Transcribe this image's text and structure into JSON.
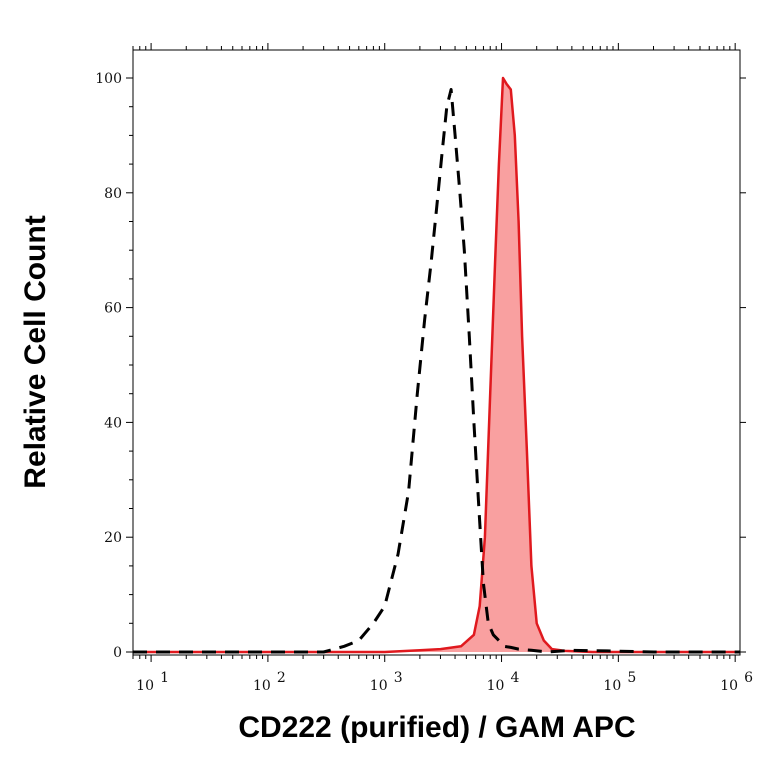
{
  "chart_data": {
    "type": "area",
    "xlabel": "CD222 (purified) / GAM APC",
    "ylabel": "Relative Cell Count",
    "x_scale": "log",
    "xlim": [
      7,
      1100000
    ],
    "ylim": [
      0,
      100
    ],
    "x_ticks": [
      {
        "base": "10",
        "exp": "1",
        "value": 10
      },
      {
        "base": "10",
        "exp": "2",
        "value": 100
      },
      {
        "base": "10",
        "exp": "3",
        "value": 1000
      },
      {
        "base": "10",
        "exp": "4",
        "value": 10000
      },
      {
        "base": "10",
        "exp": "5",
        "value": 100000
      },
      {
        "base": "10",
        "exp": "6",
        "value": 1000000
      }
    ],
    "y_ticks": [
      0,
      20,
      40,
      60,
      80,
      100
    ],
    "grid": false,
    "legend": "none",
    "series": [
      {
        "style": "dashed-black-line",
        "color": "#000000",
        "x": [
          7,
          300,
          450,
          600,
          800,
          1000,
          1300,
          1600,
          1900,
          2200,
          2500,
          2800,
          3100,
          3400,
          3700,
          4000,
          4400,
          4800,
          5300,
          5800,
          6400,
          7000,
          7700,
          8500,
          9500,
          10500,
          12000,
          14000,
          18000,
          25000,
          40000,
          80000,
          200000,
          1100000
        ],
        "y": [
          0,
          0,
          1,
          2,
          5,
          8,
          17,
          28,
          45,
          58,
          68,
          78,
          87,
          95,
          98,
          90,
          80,
          70,
          55,
          40,
          25,
          12,
          5,
          3,
          2,
          1,
          0.8,
          0.5,
          0.3,
          0,
          0.3,
          0.2,
          0,
          0
        ]
      },
      {
        "style": "filled-red-area",
        "color": "#e0191e",
        "fill": "#f9a0a0",
        "x": [
          7,
          1000,
          2000,
          3000,
          4500,
          5800,
          6500,
          7200,
          8000,
          8800,
          9500,
          10300,
          11000,
          12000,
          13000,
          14000,
          15000,
          16500,
          18000,
          20000,
          23000,
          27000,
          35000,
          60000,
          200000,
          1100000
        ],
        "y": [
          0,
          0,
          0.3,
          0.5,
          1,
          3,
          8,
          20,
          45,
          68,
          85,
          100,
          99,
          98,
          90,
          75,
          55,
          35,
          15,
          5,
          2,
          0.5,
          0.2,
          0,
          0,
          0
        ]
      }
    ]
  }
}
